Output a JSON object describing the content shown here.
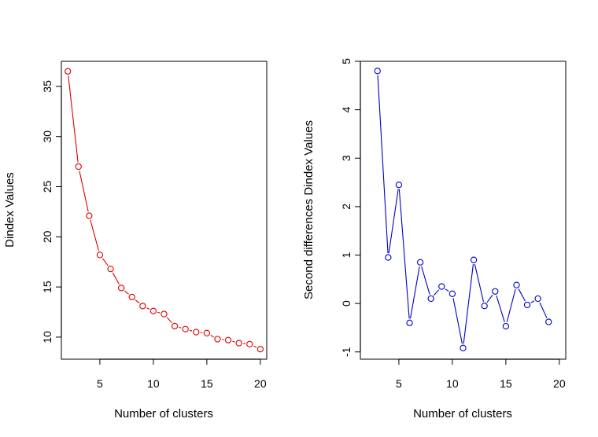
{
  "chart_data": [
    {
      "type": "line",
      "style": "points-and-lines",
      "title": "",
      "xlabel": "Number of clusters",
      "ylabel": "Dindex Values",
      "x": [
        2,
        3,
        4,
        5,
        6,
        7,
        8,
        9,
        10,
        11,
        12,
        13,
        14,
        15,
        16,
        17,
        18,
        19,
        20
      ],
      "series": [
        {
          "values": [
            36.5,
            27.0,
            22.1,
            18.2,
            16.8,
            14.9,
            14.0,
            13.1,
            12.6,
            12.3,
            11.1,
            10.8,
            10.5,
            10.4,
            9.8,
            9.7,
            9.4,
            9.3,
            8.8
          ],
          "color": "#dd0000"
        }
      ],
      "xlim": [
        1.4,
        20.6
      ],
      "ylim": [
        7.8,
        37.5
      ],
      "xticks": [
        5,
        10,
        15,
        20
      ],
      "yticks": [
        10,
        15,
        20,
        25,
        30,
        35
      ],
      "grid": false,
      "legend": "none"
    },
    {
      "type": "line",
      "style": "points-and-lines",
      "title": "",
      "xlabel": "Number of clusters",
      "ylabel": "Second differences Dindex Values",
      "x": [
        3,
        4,
        5,
        6,
        7,
        8,
        9,
        10,
        11,
        12,
        13,
        14,
        15,
        16,
        17,
        18,
        19
      ],
      "series": [
        {
          "values": [
            4.8,
            0.95,
            2.45,
            -0.4,
            0.85,
            0.1,
            0.35,
            0.2,
            -0.92,
            0.9,
            -0.05,
            0.25,
            -0.47,
            0.38,
            -0.03,
            0.1,
            -0.38
          ],
          "color": "#0000cc"
        }
      ],
      "xlim": [
        1.4,
        20.6
      ],
      "ylim": [
        -1.15,
        5.0
      ],
      "xticks": [
        5,
        10,
        15,
        20
      ],
      "yticks": [
        -1,
        0,
        1,
        2,
        3,
        4,
        5
      ],
      "grid": false,
      "legend": "none"
    }
  ]
}
